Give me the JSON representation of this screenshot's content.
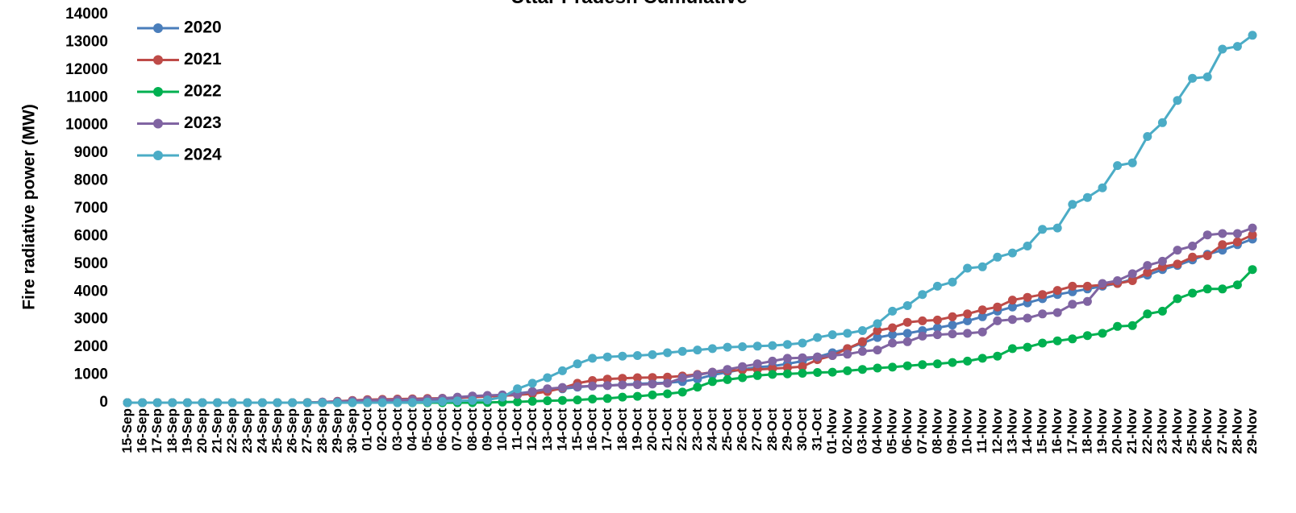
{
  "chart_data": {
    "type": "line",
    "title": "Uttar Pradesh Cumulative",
    "ylabel": "Fire radiative power (MW)",
    "xlabel": "",
    "ylim": [
      0,
      14000
    ],
    "yticks": [
      0,
      1000,
      2000,
      3000,
      4000,
      5000,
      6000,
      7000,
      8000,
      9000,
      10000,
      11000,
      12000,
      13000,
      14000
    ],
    "legend_position": "top-left",
    "grid": false,
    "categories": [
      "15-Sep",
      "16-Sep",
      "17-Sep",
      "18-Sep",
      "19-Sep",
      "20-Sep",
      "21-Sep",
      "22-Sep",
      "23-Sep",
      "24-Sep",
      "25-Sep",
      "26-Sep",
      "27-Sep",
      "28-Sep",
      "29-Sep",
      "30-Sep",
      "01-Oct",
      "02-Oct",
      "03-Oct",
      "04-Oct",
      "05-Oct",
      "06-Oct",
      "07-Oct",
      "08-Oct",
      "09-Oct",
      "10-Oct",
      "11-Oct",
      "12-Oct",
      "13-Oct",
      "14-Oct",
      "15-Oct",
      "16-Oct",
      "17-Oct",
      "18-Oct",
      "19-Oct",
      "20-Oct",
      "21-Oct",
      "22-Oct",
      "23-Oct",
      "24-Oct",
      "25-Oct",
      "26-Oct",
      "27-Oct",
      "28-Oct",
      "29-Oct",
      "30-Oct",
      "31-Oct",
      "01-Nov",
      "02-Nov",
      "03-Nov",
      "04-Nov",
      "05-Nov",
      "06-Nov",
      "07-Nov",
      "08-Nov",
      "09-Nov",
      "10-Nov",
      "11-Nov",
      "12-Nov",
      "13-Nov",
      "14-Nov",
      "15-Nov",
      "16-Nov",
      "17-Nov",
      "18-Nov",
      "19-Nov",
      "20-Nov",
      "21-Nov",
      "22-Nov",
      "23-Nov",
      "24-Nov",
      "25-Nov",
      "26-Nov",
      "27-Nov",
      "28-Nov",
      "29-Nov"
    ],
    "series": [
      {
        "name": "2020",
        "color": "#4a7ebb",
        "values": [
          0,
          0,
          0,
          0,
          0,
          0,
          0,
          0,
          0,
          0,
          0,
          0,
          0,
          10,
          20,
          30,
          40,
          50,
          60,
          70,
          90,
          120,
          160,
          200,
          240,
          280,
          330,
          400,
          450,
          500,
          560,
          600,
          620,
          650,
          680,
          700,
          720,
          760,
          850,
          1000,
          1100,
          1200,
          1280,
          1320,
          1400,
          1500,
          1650,
          1800,
          1950,
          2150,
          2350,
          2450,
          2500,
          2600,
          2700,
          2800,
          2950,
          3100,
          3300,
          3450,
          3600,
          3750,
          3900,
          4000,
          4100,
          4200,
          4300,
          4450,
          4600,
          4800,
          4950,
          5150,
          5350,
          5500,
          5700,
          5900
        ]
      },
      {
        "name": "2021",
        "color": "#be4b48",
        "values": [
          0,
          0,
          0,
          0,
          0,
          0,
          0,
          0,
          0,
          0,
          0,
          0,
          10,
          20,
          50,
          80,
          110,
          120,
          130,
          140,
          150,
          160,
          180,
          200,
          220,
          250,
          280,
          320,
          400,
          530,
          700,
          800,
          850,
          880,
          900,
          910,
          920,
          960,
          1020,
          1100,
          1150,
          1180,
          1200,
          1230,
          1260,
          1300,
          1550,
          1700,
          1950,
          2200,
          2600,
          2700,
          2900,
          2950,
          2980,
          3100,
          3200,
          3350,
          3450,
          3700,
          3800,
          3900,
          4050,
          4200,
          4200,
          4250,
          4300,
          4400,
          4700,
          4900,
          5000,
          5250,
          5300,
          5700,
          5800,
          6050
        ]
      },
      {
        "name": "2022",
        "color": "#00b050",
        "values": [
          0,
          0,
          0,
          0,
          0,
          0,
          0,
          0,
          0,
          0,
          0,
          0,
          0,
          0,
          0,
          0,
          0,
          0,
          0,
          0,
          0,
          0,
          0,
          0,
          10,
          20,
          30,
          50,
          70,
          80,
          100,
          130,
          150,
          200,
          230,
          280,
          320,
          380,
          560,
          760,
          830,
          900,
          980,
          1020,
          1040,
          1060,
          1090,
          1100,
          1150,
          1200,
          1250,
          1280,
          1330,
          1370,
          1400,
          1450,
          1500,
          1600,
          1680,
          1950,
          2000,
          2150,
          2230,
          2300,
          2420,
          2500,
          2750,
          2780,
          3200,
          3300,
          3750,
          3950,
          4100,
          4100,
          4250,
          4800
        ]
      },
      {
        "name": "2023",
        "color": "#8064a2",
        "values": [
          0,
          0,
          0,
          0,
          0,
          0,
          0,
          0,
          0,
          0,
          0,
          0,
          0,
          20,
          40,
          60,
          80,
          90,
          100,
          110,
          120,
          150,
          200,
          240,
          260,
          280,
          300,
          400,
          500,
          550,
          580,
          600,
          620,
          640,
          650,
          670,
          700,
          900,
          1000,
          1100,
          1200,
          1300,
          1400,
          1500,
          1600,
          1620,
          1650,
          1700,
          1750,
          1850,
          1900,
          2150,
          2200,
          2400,
          2450,
          2480,
          2500,
          2550,
          2950,
          3000,
          3050,
          3200,
          3250,
          3550,
          3650,
          4300,
          4400,
          4650,
          4950,
          5100,
          5500,
          5650,
          6050,
          6100,
          6100,
          6300
        ]
      },
      {
        "name": "2024",
        "color": "#4bacc6",
        "values": [
          0,
          0,
          0,
          0,
          0,
          0,
          0,
          0,
          0,
          0,
          0,
          0,
          0,
          0,
          0,
          0,
          0,
          0,
          0,
          10,
          20,
          40,
          60,
          80,
          100,
          200,
          500,
          700,
          900,
          1150,
          1400,
          1600,
          1650,
          1680,
          1700,
          1730,
          1800,
          1850,
          1900,
          1950,
          2000,
          2020,
          2040,
          2060,
          2100,
          2150,
          2350,
          2450,
          2500,
          2600,
          2850,
          3300,
          3500,
          3900,
          4200,
          4350,
          4850,
          4900,
          5250,
          5400,
          5650,
          6250,
          6300,
          7150,
          7400,
          7750,
          8550,
          8650,
          9600,
          10100,
          10900,
          11700,
          11750,
          12750,
          12850,
          13250
        ]
      }
    ]
  }
}
